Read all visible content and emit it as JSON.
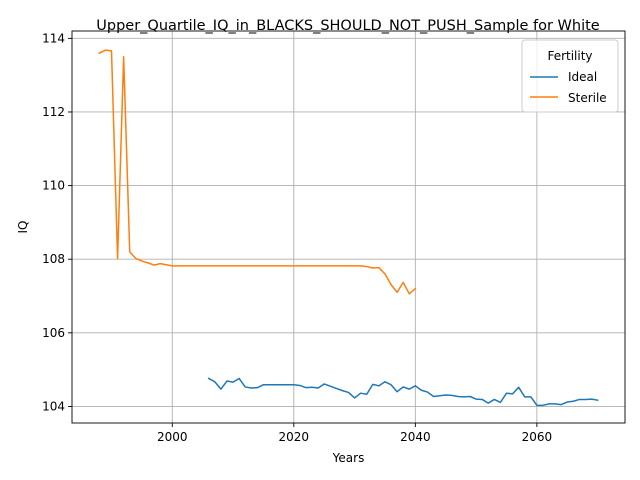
{
  "chart_data": {
    "type": "line",
    "title": "Upper_Quartile_IQ_in_BLACKS_SHOULD_NOT_PUSH_Sample for White",
    "xlabel": "Years",
    "ylabel": "IQ",
    "xlim": [
      1983.5,
      2074.5
    ],
    "ylim": [
      103.55,
      114.2
    ],
    "xticks": [
      2000,
      2020,
      2040,
      2060
    ],
    "yticks": [
      104,
      106,
      108,
      110,
      112,
      114
    ],
    "grid": true,
    "legend": {
      "title": "Fertility",
      "placement": "top-right"
    },
    "series": [
      {
        "name": "Ideal",
        "color": "#1f77b4",
        "x": [
          2006,
          2007,
          2008,
          2009,
          2010,
          2011,
          2012,
          2013,
          2014,
          2015,
          2016,
          2017,
          2018,
          2019,
          2020,
          2021,
          2022,
          2023,
          2024,
          2025,
          2026,
          2027,
          2028,
          2029,
          2030,
          2031,
          2032,
          2033,
          2034,
          2035,
          2036,
          2037,
          2038,
          2039,
          2040,
          2041,
          2042,
          2043,
          2044,
          2045,
          2046,
          2047,
          2048,
          2049,
          2050,
          2051,
          2052,
          2053,
          2054,
          2055,
          2056,
          2057,
          2058,
          2059,
          2060,
          2061,
          2062,
          2063,
          2064,
          2065,
          2066,
          2067,
          2068,
          2069,
          2070
        ],
        "values": [
          104.76,
          104.67,
          104.47,
          104.69,
          104.66,
          104.76,
          104.53,
          104.5,
          104.51,
          104.59,
          104.59,
          104.59,
          104.59,
          104.59,
          104.59,
          104.57,
          104.51,
          104.52,
          104.5,
          104.61,
          104.55,
          104.49,
          104.43,
          104.38,
          104.23,
          104.36,
          104.33,
          104.6,
          104.56,
          104.67,
          104.59,
          104.4,
          104.53,
          104.47,
          104.56,
          104.44,
          104.39,
          104.27,
          104.29,
          104.31,
          104.3,
          104.27,
          104.26,
          104.27,
          104.2,
          104.19,
          104.09,
          104.19,
          104.11,
          104.36,
          104.34,
          104.52,
          104.26,
          104.26,
          104.03,
          104.03,
          104.07,
          104.07,
          104.05,
          104.12,
          104.14,
          104.19,
          104.19,
          104.2,
          104.17
        ]
      },
      {
        "name": "Sterile",
        "color": "#ff7f0e",
        "x": [
          1988,
          1989,
          1990,
          1991,
          1992,
          1993,
          1994,
          1995,
          1996,
          1997,
          1998,
          1999,
          2000,
          2005,
          2010,
          2015,
          2020,
          2025,
          2030,
          2031,
          2032,
          2033,
          2034,
          2035,
          2036,
          2037,
          2038,
          2039,
          2040
        ],
        "values": [
          113.6,
          113.68,
          113.66,
          108.02,
          113.5,
          108.2,
          108.02,
          107.95,
          107.9,
          107.84,
          107.88,
          107.85,
          107.82,
          107.82,
          107.82,
          107.82,
          107.82,
          107.82,
          107.82,
          107.82,
          107.8,
          107.76,
          107.77,
          107.6,
          107.31,
          107.1,
          107.37,
          107.06,
          107.2
        ]
      }
    ]
  }
}
